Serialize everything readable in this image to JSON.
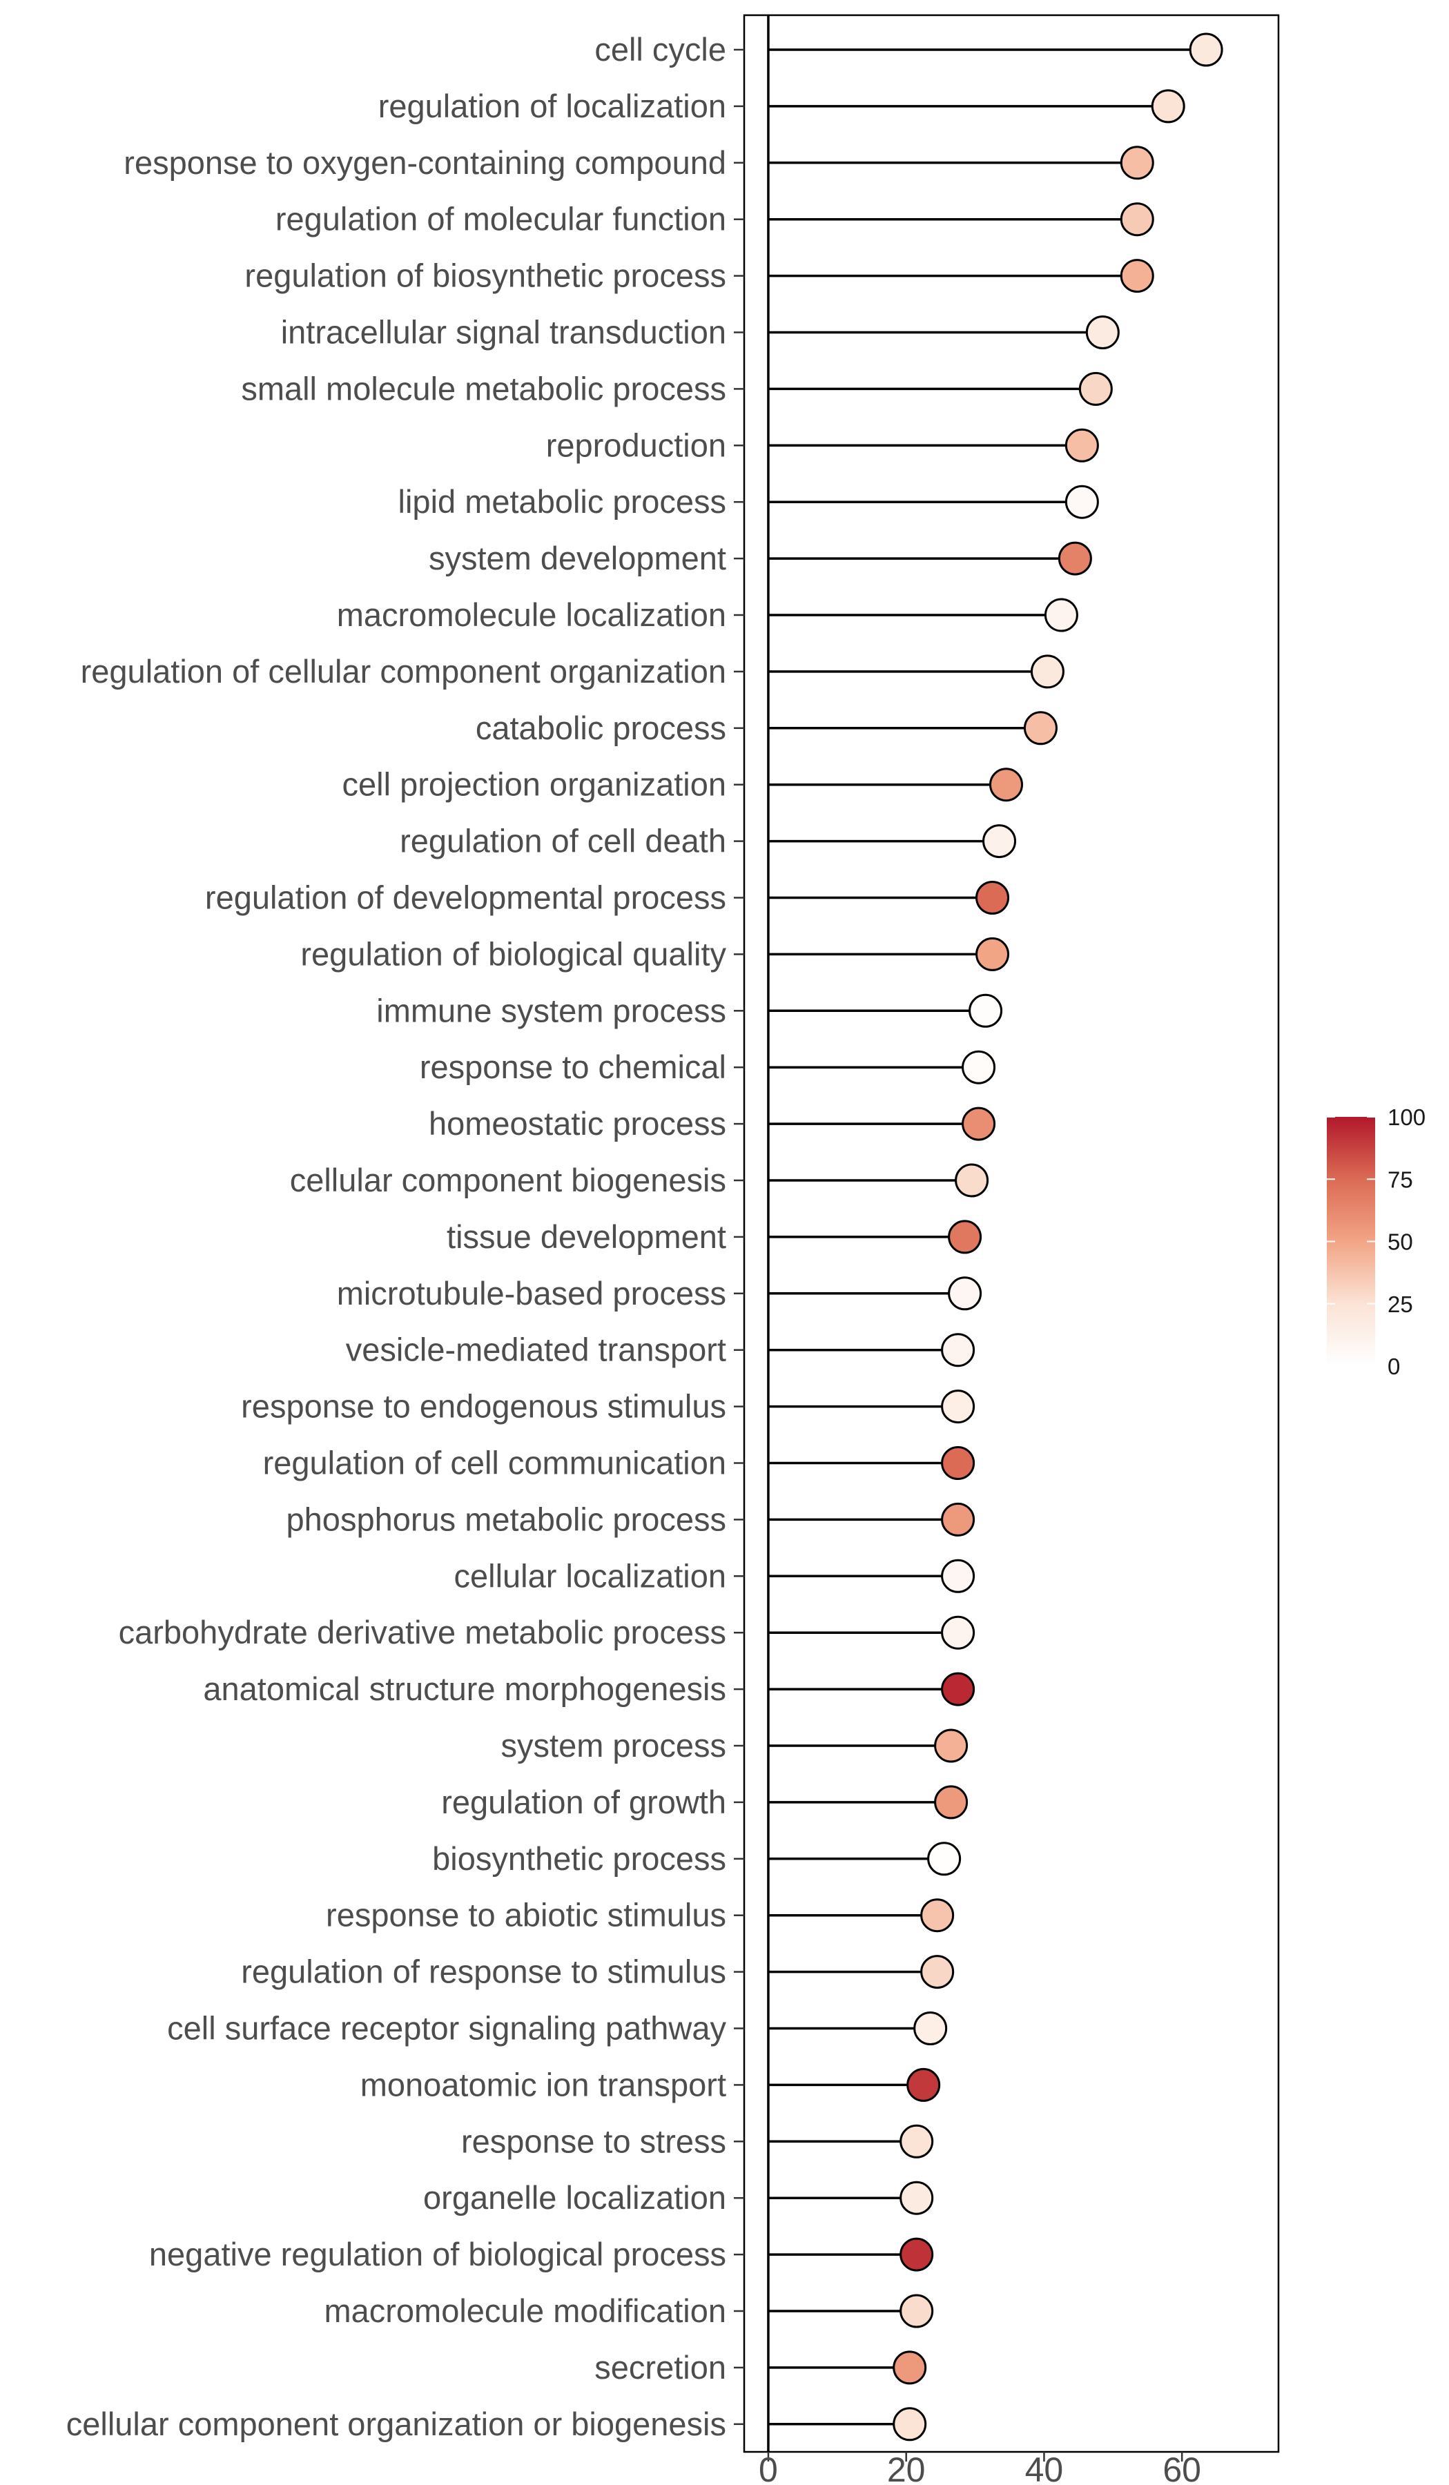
{
  "chart_data": {
    "type": "lollipop",
    "title": "",
    "xlabel": "",
    "ylabel": "",
    "xlim": [
      -3.5,
      74
    ],
    "x_ticks": [
      0,
      20,
      40,
      60
    ],
    "grid": false,
    "legend_position": "right",
    "color_scale": {
      "min": 0,
      "max": 100,
      "ticks": [
        0,
        25,
        50,
        75,
        100
      ],
      "low_color": "#ffffff",
      "high_color": "#b2182b"
    },
    "categories": [
      "cell cycle",
      "regulation of localization",
      "response to oxygen-containing compound",
      "regulation of molecular function",
      "regulation of biosynthetic process",
      "intracellular signal transduction",
      "small molecule metabolic process",
      "reproduction",
      "lipid metabolic process",
      "system development",
      "macromolecule localization",
      "regulation of cellular component organization",
      "catabolic process",
      "cell projection organization",
      "regulation of cell death",
      "regulation of developmental process",
      "regulation of biological quality",
      "immune system process",
      "response to chemical",
      "homeostatic process",
      "cellular component biogenesis",
      "tissue development",
      "microtubule-based process",
      "vesicle-mediated transport",
      "response to endogenous stimulus",
      "regulation of cell communication",
      "phosphorus metabolic process",
      "cellular localization",
      "carbohydrate derivative metabolic process",
      "anatomical structure morphogenesis",
      "system process",
      "regulation of growth",
      "biosynthetic process",
      "response to abiotic stimulus",
      "regulation of response to stimulus",
      "cell surface receptor signaling pathway",
      "monoatomic ion transport",
      "response to stress",
      "organelle localization",
      "negative regulation of biological process",
      "macromolecule modification",
      "secretion",
      "cellular component organization or biogenesis"
    ],
    "values": [
      63.5,
      58,
      53.5,
      53.5,
      53.5,
      48.5,
      47.5,
      45.5,
      45.5,
      44.5,
      42.5,
      40.5,
      39.5,
      34.5,
      33.5,
      32.5,
      32.5,
      31.5,
      30.5,
      30.5,
      29.5,
      28.5,
      28.5,
      27.5,
      27.5,
      27.5,
      27.5,
      27.5,
      27.5,
      27.5,
      26.5,
      26.5,
      25.5,
      24.5,
      24.5,
      23.5,
      22.5,
      21.5,
      21.5,
      21.5,
      21.5,
      20.5,
      20.5
    ],
    "colors": [
      20,
      25,
      40,
      35,
      45,
      18,
      30,
      40,
      5,
      65,
      10,
      20,
      40,
      55,
      12,
      75,
      50,
      2,
      3,
      60,
      28,
      70,
      8,
      10,
      15,
      75,
      55,
      8,
      10,
      95,
      45,
      55,
      1,
      38,
      30,
      15,
      90,
      25,
      18,
      92,
      28,
      55,
      25
    ]
  }
}
